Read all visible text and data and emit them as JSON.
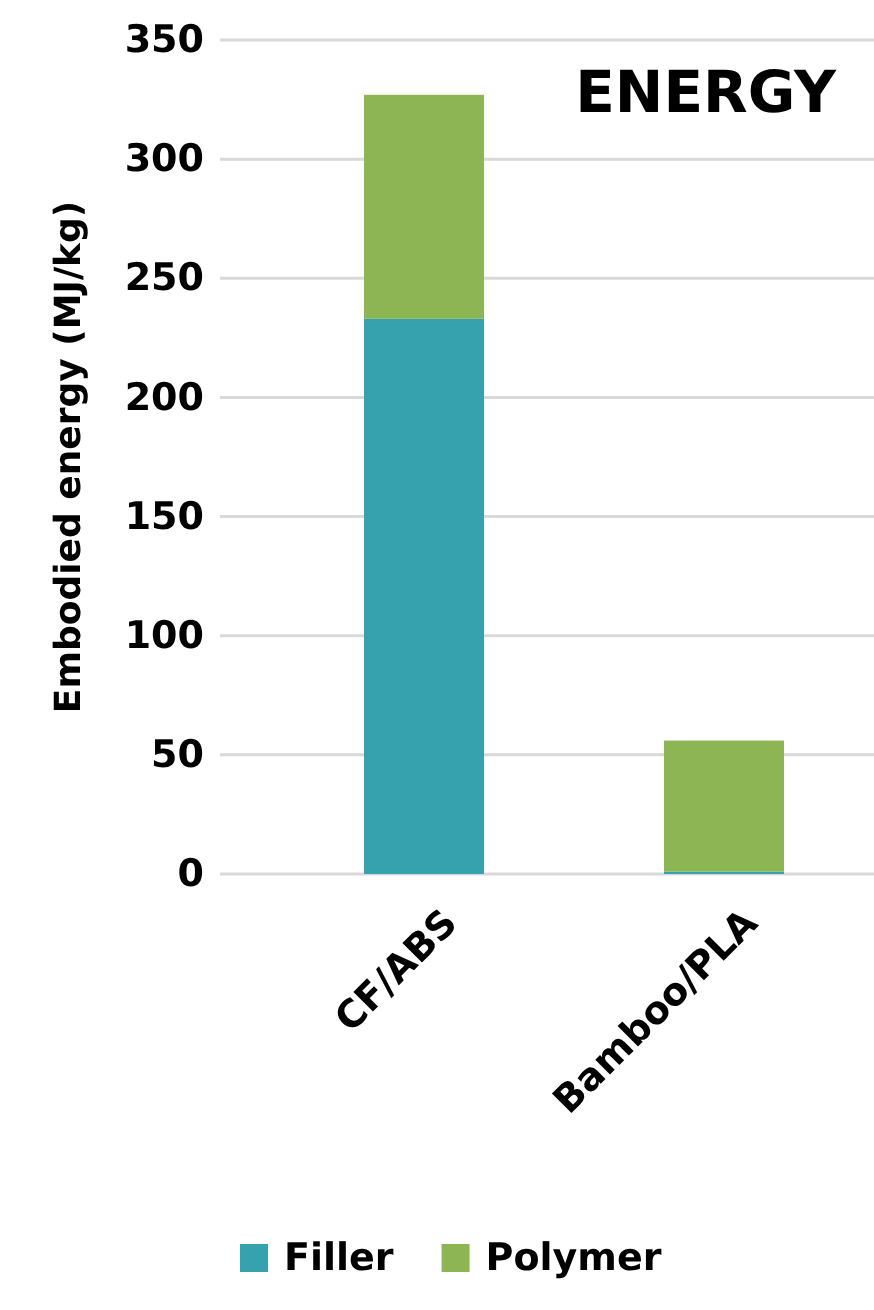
{
  "chart_data": {
    "type": "bar",
    "title": "ENERGY",
    "ylabel": "Embodied energy (MJ/kg)",
    "categories": [
      "CF/ABS",
      "Bamboo/PLA"
    ],
    "stacked": true,
    "series": [
      {
        "name": "Filler",
        "color": "#36a2ae",
        "values": [
          233,
          1
        ]
      },
      {
        "name": "Polymer",
        "color": "#8db553",
        "values": [
          94,
          55
        ]
      }
    ],
    "ylim": [
      0,
      350
    ],
    "yticks": [
      0,
      50,
      100,
      150,
      200,
      250,
      300,
      350
    ],
    "grid": "y",
    "legend": "bottom"
  }
}
